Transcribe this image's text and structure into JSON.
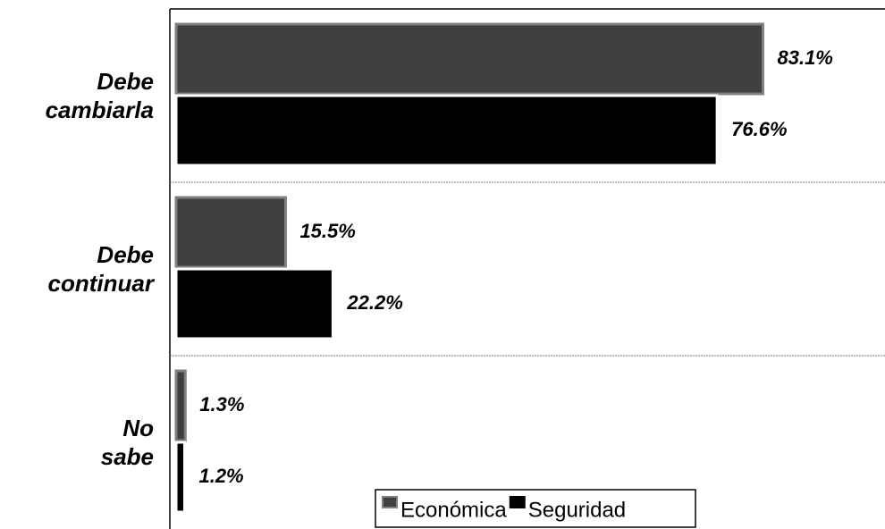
{
  "chart_data": {
    "type": "hbar",
    "categories": [
      "Debe cambiarla",
      "Debe continuar",
      "No sabe"
    ],
    "series": [
      {
        "name": "Económica",
        "color": "#404040",
        "border": "#808080",
        "values": [
          83.1,
          15.5,
          1.3
        ],
        "value_labels": [
          "83.1%",
          "15.5%",
          "1.3%"
        ]
      },
      {
        "name": "Seguridad",
        "color": "#000000",
        "border": "#ffffff",
        "values": [
          76.6,
          22.2,
          1.2
        ],
        "value_labels": [
          "76.6%",
          "22.2%",
          "1.2%"
        ]
      }
    ],
    "xlim": [
      0,
      100
    ],
    "grid": true,
    "legend": "bottom"
  }
}
